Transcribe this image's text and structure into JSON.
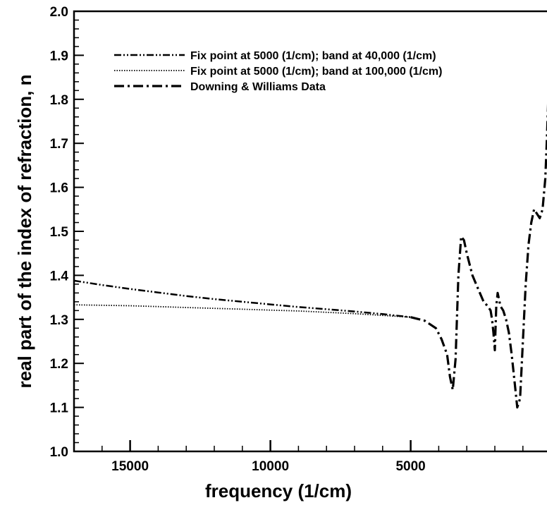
{
  "chart_data": {
    "type": "line",
    "title": "",
    "xlabel": "frequency (1/cm)",
    "ylabel": "real part of the index of refraction, n",
    "xlim": [
      17000,
      0
    ],
    "ylim": [
      1.0,
      2.0
    ],
    "x_reversed": true,
    "x_ticks": [
      15000,
      10000,
      5000
    ],
    "y_ticks": [
      1.0,
      1.1,
      1.2,
      1.3,
      1.4,
      1.5,
      1.6,
      1.7,
      1.8,
      1.9,
      2.0
    ],
    "y_tick_labels": [
      "1.0",
      "1.1",
      "1.2",
      "1.3",
      "1.4",
      "1.5",
      "1.6",
      "1.7",
      "1.8",
      "1.9",
      "2.0"
    ],
    "grid": false,
    "legend_position": "top-left",
    "series": [
      {
        "name": "Fix point at 5000 (1/cm); band at 40,000 (1/cm)",
        "style": "dash-dot-dot",
        "x": [
          17000,
          16000,
          15000,
          14000,
          13000,
          12000,
          11000,
          10000,
          9000,
          8000,
          7000,
          6000,
          5000
        ],
        "y": [
          1.388,
          1.378,
          1.369,
          1.361,
          1.353,
          1.346,
          1.34,
          1.334,
          1.328,
          1.323,
          1.318,
          1.312,
          1.305
        ]
      },
      {
        "name": "Fix point at 5000 (1/cm); band at 100,000 (1/cm)",
        "style": "dotted",
        "x": [
          17000,
          16000,
          15000,
          14000,
          13000,
          12000,
          11000,
          10000,
          9000,
          8000,
          7000,
          6000,
          5000
        ],
        "y": [
          1.333,
          1.332,
          1.331,
          1.329,
          1.327,
          1.325,
          1.323,
          1.321,
          1.319,
          1.316,
          1.313,
          1.309,
          1.305
        ]
      },
      {
        "name": "Downing & Williams Data",
        "style": "dash-dot",
        "x": [
          5000,
          4500,
          4100,
          3900,
          3700,
          3600,
          3500,
          3400,
          3300,
          3200,
          3100,
          3000,
          2800,
          2600,
          2400,
          2250,
          2150,
          2100,
          2050,
          2000,
          1950,
          1900,
          1800,
          1700,
          1600,
          1500,
          1400,
          1300,
          1200,
          1100,
          1000,
          900,
          800,
          700,
          600,
          500,
          400,
          300,
          200,
          150,
          100
        ],
        "y": [
          1.305,
          1.297,
          1.28,
          1.255,
          1.22,
          1.17,
          1.14,
          1.21,
          1.4,
          1.488,
          1.48,
          1.45,
          1.4,
          1.37,
          1.34,
          1.33,
          1.32,
          1.3,
          1.27,
          1.23,
          1.33,
          1.36,
          1.33,
          1.32,
          1.3,
          1.27,
          1.22,
          1.16,
          1.1,
          1.12,
          1.25,
          1.38,
          1.47,
          1.52,
          1.55,
          1.54,
          1.53,
          1.55,
          1.62,
          1.7,
          1.79
        ]
      }
    ]
  }
}
